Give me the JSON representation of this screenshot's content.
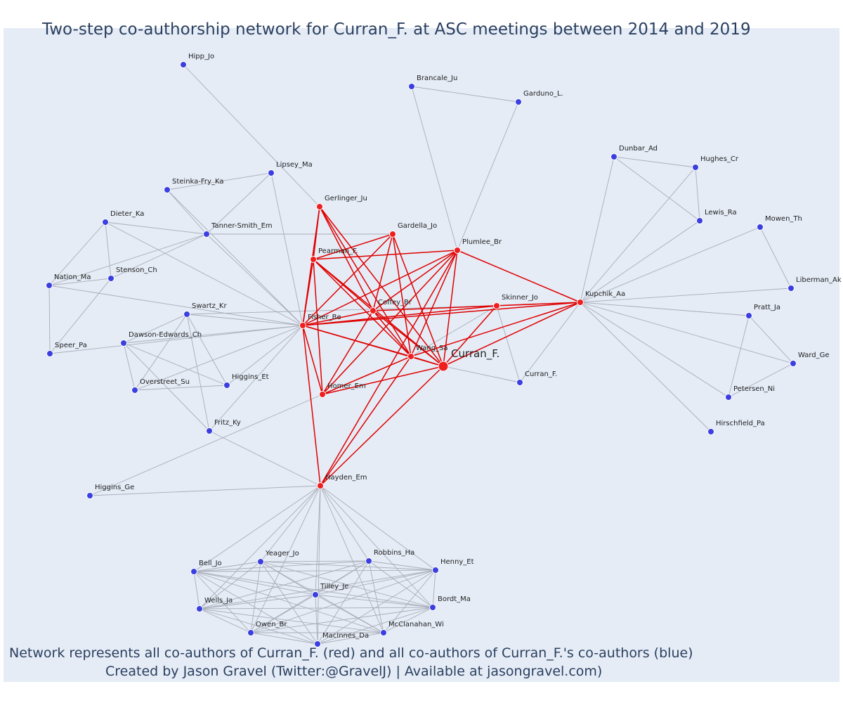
{
  "title": "Two-step co-authorship network for Curran_F. at ASC meetings between 2014 and 2019",
  "captions": {
    "line1": "Network represents all co-authors of Curran_F. (red) and all co-authors of Curran_F.'s co-authors (blue)",
    "line2": "Created by Jason Gravel (Twitter:@GravelJ) | Available at jasongravel.com)"
  },
  "colors": {
    "background": "#e5ecf6",
    "red_node": "#ef1f1f",
    "blue_node": "#3b3fe0",
    "red_edge": "#e00000",
    "gray_edge": "#a9adb8",
    "text": "#2a3f5f"
  },
  "nodes": [
    {
      "id": "Curran_F.",
      "label": "Curran_F.",
      "group": "focal"
    },
    {
      "id": "Wang_Sa",
      "label": "Wang_Sa",
      "group": "red"
    },
    {
      "id": "Fisher_Be",
      "label": "Fisher_Be",
      "group": "red"
    },
    {
      "id": "Coffey_Br",
      "label": "Coffey_Br",
      "group": "red"
    },
    {
      "id": "Gerlinger_Ju",
      "label": "Gerlinger_Ju",
      "group": "red"
    },
    {
      "id": "Gardella_Jo",
      "label": "Gardella_Jo",
      "group": "red"
    },
    {
      "id": "Pearman_F.",
      "label": "Pearman_F.",
      "group": "red"
    },
    {
      "id": "Plumlee_Br",
      "label": "Plumlee_Br",
      "group": "red"
    },
    {
      "id": "Skinner_Jo",
      "label": "Skinner_Jo",
      "group": "red"
    },
    {
      "id": "Kupchik_Aa",
      "label": "Kupchik_Aa",
      "group": "red"
    },
    {
      "id": "Homer_Em",
      "label": "Homer_Em",
      "group": "red"
    },
    {
      "id": "Hayden_Em",
      "label": "Hayden_Em",
      "group": "red"
    },
    {
      "id": "Hipp_Jo",
      "label": "Hipp_Jo",
      "group": "blue"
    },
    {
      "id": "Lipsey_Ma",
      "label": "Lipsey_Ma",
      "group": "blue"
    },
    {
      "id": "Steinka-Fry_Ka",
      "label": "Steinka-Fry_Ka",
      "group": "blue"
    },
    {
      "id": "Tanner-Smith_Em",
      "label": "Tanner-Smith_Em",
      "group": "blue"
    },
    {
      "id": "Dieter_Ka",
      "label": "Dieter_Ka",
      "group": "blue"
    },
    {
      "id": "Stenson_Ch",
      "label": "Stenson_Ch",
      "group": "blue"
    },
    {
      "id": "Nation_Ma",
      "label": "Nation_Ma",
      "group": "blue"
    },
    {
      "id": "Speer_Pa",
      "label": "Speer_Pa",
      "group": "blue"
    },
    {
      "id": "Swartz_Kr",
      "label": "Swartz_Kr",
      "group": "blue"
    },
    {
      "id": "Dawson-Edwards_Ch",
      "label": "Dawson-Edwards_Ch",
      "group": "blue"
    },
    {
      "id": "Overstreet_Su",
      "label": "Overstreet_Su",
      "group": "blue"
    },
    {
      "id": "Higgins_Et",
      "label": "Higgins_Et",
      "group": "blue"
    },
    {
      "id": "Fritz_Ky",
      "label": "Fritz_Ky",
      "group": "blue"
    },
    {
      "id": "Higgins_Ge",
      "label": "Higgins_Ge",
      "group": "blue"
    },
    {
      "id": "Brancale_Ju",
      "label": "Brancale_Ju",
      "group": "blue"
    },
    {
      "id": "Garduno_L.",
      "label": "Garduno_L.",
      "group": "blue"
    },
    {
      "id": "Dunbar_Ad",
      "label": "Dunbar_Ad",
      "group": "blue"
    },
    {
      "id": "Hughes_Cr",
      "label": "Hughes_Cr",
      "group": "blue"
    },
    {
      "id": "Lewis_Ra",
      "label": "Lewis_Ra",
      "group": "blue"
    },
    {
      "id": "Mowen_Th",
      "label": "Mowen_Th",
      "group": "blue"
    },
    {
      "id": "Liberman_Ak",
      "label": "Liberman_Ak",
      "group": "blue"
    },
    {
      "id": "Pratt_Ja",
      "label": "Pratt_Ja",
      "group": "blue"
    },
    {
      "id": "Ward_Ge",
      "label": "Ward_Ge",
      "group": "blue"
    },
    {
      "id": "Petersen_Ni",
      "label": "Petersen_Ni",
      "group": "blue"
    },
    {
      "id": "Hirschfield_Pa",
      "label": "Hirschfield_Pa",
      "group": "blue"
    },
    {
      "id": "Curran_F.2",
      "label": "Curran_F.",
      "group": "blue"
    },
    {
      "id": "Bell_Jo",
      "label": "Bell_Jo",
      "group": "blue"
    },
    {
      "id": "Yeager_Jo",
      "label": "Yeager_Jo",
      "group": "blue"
    },
    {
      "id": "Robbins_Ha",
      "label": "Robbins_Ha",
      "group": "blue"
    },
    {
      "id": "Henny_Et",
      "label": "Henny_Et",
      "group": "blue"
    },
    {
      "id": "Tilley_Je",
      "label": "Tilley_Je",
      "group": "blue"
    },
    {
      "id": "Wells_Ja",
      "label": "Wells_Ja",
      "group": "blue"
    },
    {
      "id": "Bordt_Ma",
      "label": "Bordt_Ma",
      "group": "blue"
    },
    {
      "id": "Owen_Br",
      "label": "Owen_Br",
      "group": "blue"
    },
    {
      "id": "McClanahan_Wi",
      "label": "McClanahan_Wi",
      "group": "blue"
    },
    {
      "id": "MacInnes_Da",
      "label": "MacInnes_Da",
      "group": "blue"
    }
  ],
  "red_edges": [
    [
      "Curran_F.",
      "Wang_Sa"
    ],
    [
      "Curran_F.",
      "Fisher_Be"
    ],
    [
      "Curran_F.",
      "Coffey_Br"
    ],
    [
      "Curran_F.",
      "Gerlinger_Ju"
    ],
    [
      "Curran_F.",
      "Gardella_Jo"
    ],
    [
      "Curran_F.",
      "Pearman_F."
    ],
    [
      "Curran_F.",
      "Plumlee_Br"
    ],
    [
      "Curran_F.",
      "Skinner_Jo"
    ],
    [
      "Curran_F.",
      "Kupchik_Aa"
    ],
    [
      "Curran_F.",
      "Homer_Em"
    ],
    [
      "Curran_F.",
      "Hayden_Em"
    ],
    [
      "Wang_Sa",
      "Fisher_Be"
    ],
    [
      "Wang_Sa",
      "Coffey_Br"
    ],
    [
      "Wang_Sa",
      "Gerlinger_Ju"
    ],
    [
      "Wang_Sa",
      "Gardella_Jo"
    ],
    [
      "Wang_Sa",
      "Pearman_F."
    ],
    [
      "Wang_Sa",
      "Plumlee_Br"
    ],
    [
      "Wang_Sa",
      "Kupchik_Aa"
    ],
    [
      "Wang_Sa",
      "Homer_Em"
    ],
    [
      "Wang_Sa",
      "Hayden_Em"
    ],
    [
      "Fisher_Be",
      "Gerlinger_Ju"
    ],
    [
      "Fisher_Be",
      "Gardella_Jo"
    ],
    [
      "Fisher_Be",
      "Pearman_F."
    ],
    [
      "Fisher_Be",
      "Plumlee_Br"
    ],
    [
      "Fisher_Be",
      "Skinner_Jo"
    ],
    [
      "Fisher_Be",
      "Kupchik_Aa"
    ],
    [
      "Fisher_Be",
      "Homer_Em"
    ],
    [
      "Fisher_Be",
      "Hayden_Em"
    ],
    [
      "Fisher_Be",
      "Coffey_Br"
    ],
    [
      "Coffey_Br",
      "Gerlinger_Ju"
    ],
    [
      "Coffey_Br",
      "Pearman_F."
    ],
    [
      "Coffey_Br",
      "Plumlee_Br"
    ],
    [
      "Coffey_Br",
      "Kupchik_Aa"
    ],
    [
      "Coffey_Br",
      "Homer_Em"
    ],
    [
      "Coffey_Br",
      "Gardella_Jo"
    ],
    [
      "Pearman_F.",
      "Gardella_Jo"
    ],
    [
      "Pearman_F.",
      "Gerlinger_Ju"
    ],
    [
      "Pearman_F.",
      "Plumlee_Br"
    ],
    [
      "Pearman_F.",
      "Homer_Em"
    ],
    [
      "Plumlee_Br",
      "Homer_Em"
    ],
    [
      "Plumlee_Br",
      "Kupchik_Aa"
    ],
    [
      "Plumlee_Br",
      "Hayden_Em"
    ]
  ],
  "gray_edges": [
    [
      "Hipp_Jo",
      "Gerlinger_Ju"
    ],
    [
      "Lipsey_Ma",
      "Steinka-Fry_Ka"
    ],
    [
      "Lipsey_Ma",
      "Tanner-Smith_Em"
    ],
    [
      "Lipsey_Ma",
      "Fisher_Be"
    ],
    [
      "Steinka-Fry_Ka",
      "Tanner-Smith_Em"
    ],
    [
      "Steinka-Fry_Ka",
      "Fisher_Be"
    ],
    [
      "Tanner-Smith_Em",
      "Fisher_Be"
    ],
    [
      "Tanner-Smith_Em",
      "Gardella_Jo"
    ],
    [
      "Tanner-Smith_Em",
      "Nation_Ma"
    ],
    [
      "Tanner-Smith_Em",
      "Stenson_Ch"
    ],
    [
      "Dieter_Ka",
      "Tanner-Smith_Em"
    ],
    [
      "Dieter_Ka",
      "Stenson_Ch"
    ],
    [
      "Dieter_Ka",
      "Nation_Ma"
    ],
    [
      "Dieter_Ka",
      "Fisher_Be"
    ],
    [
      "Stenson_Ch",
      "Nation_Ma"
    ],
    [
      "Stenson_Ch",
      "Speer_Pa"
    ],
    [
      "Nation_Ma",
      "Speer_Pa"
    ],
    [
      "Nation_Ma",
      "Fisher_Be"
    ],
    [
      "Speer_Pa",
      "Fisher_Be"
    ],
    [
      "Swartz_Kr",
      "Fisher_Be"
    ],
    [
      "Swartz_Kr",
      "Dawson-Edwards_Ch"
    ],
    [
      "Swartz_Kr",
      "Overstreet_Su"
    ],
    [
      "Swartz_Kr",
      "Higgins_Et"
    ],
    [
      "Swartz_Kr",
      "Fritz_Ky"
    ],
    [
      "Swartz_Kr",
      "Skinner_Jo"
    ],
    [
      "Dawson-Edwards_Ch",
      "Fisher_Be"
    ],
    [
      "Dawson-Edwards_Ch",
      "Overstreet_Su"
    ],
    [
      "Dawson-Edwards_Ch",
      "Higgins_Et"
    ],
    [
      "Dawson-Edwards_Ch",
      "Fritz_Ky"
    ],
    [
      "Overstreet_Su",
      "Fisher_Be"
    ],
    [
      "Overstreet_Su",
      "Higgins_Et"
    ],
    [
      "Higgins_Et",
      "Fisher_Be"
    ],
    [
      "Fritz_Ky",
      "Fisher_Be"
    ],
    [
      "Fritz_Ky",
      "Hayden_Em"
    ],
    [
      "Higgins_Ge",
      "Hayden_Em"
    ],
    [
      "Higgins_Ge",
      "Homer_Em"
    ],
    [
      "Brancale_Ju",
      "Garduno_L."
    ],
    [
      "Brancale_Ju",
      "Plumlee_Br"
    ],
    [
      "Garduno_L.",
      "Plumlee_Br"
    ],
    [
      "Dunbar_Ad",
      "Hughes_Cr"
    ],
    [
      "Dunbar_Ad",
      "Lewis_Ra"
    ],
    [
      "Dunbar_Ad",
      "Kupchik_Aa"
    ],
    [
      "Hughes_Cr",
      "Lewis_Ra"
    ],
    [
      "Hughes_Cr",
      "Kupchik_Aa"
    ],
    [
      "Lewis_Ra",
      "Kupchik_Aa"
    ],
    [
      "Mowen_Th",
      "Liberman_Ak"
    ],
    [
      "Mowen_Th",
      "Kupchik_Aa"
    ],
    [
      "Liberman_Ak",
      "Kupchik_Aa"
    ],
    [
      "Pratt_Ja",
      "Kupchik_Aa"
    ],
    [
      "Pratt_Ja",
      "Ward_Ge"
    ],
    [
      "Pratt_Ja",
      "Petersen_Ni"
    ],
    [
      "Ward_Ge",
      "Kupchik_Aa"
    ],
    [
      "Ward_Ge",
      "Petersen_Ni"
    ],
    [
      "Petersen_Ni",
      "Kupchik_Aa"
    ],
    [
      "Hirschfield_Pa",
      "Kupchik_Aa"
    ],
    [
      "Curran_F.2",
      "Skinner_Jo"
    ],
    [
      "Curran_F.2",
      "Kupchik_Aa"
    ],
    [
      "Curran_F.2",
      "Curran_F."
    ],
    [
      "Skinner_Jo",
      "Wang_Sa"
    ],
    [
      "Hayden_Em",
      "Bell_Jo"
    ],
    [
      "Hayden_Em",
      "Yeager_Jo"
    ],
    [
      "Hayden_Em",
      "Robbins_Ha"
    ],
    [
      "Hayden_Em",
      "Henny_Et"
    ],
    [
      "Hayden_Em",
      "Tilley_Je"
    ],
    [
      "Hayden_Em",
      "Wells_Ja"
    ],
    [
      "Hayden_Em",
      "Bordt_Ma"
    ],
    [
      "Hayden_Em",
      "Owen_Br"
    ],
    [
      "Hayden_Em",
      "McClanahan_Wi"
    ],
    [
      "Hayden_Em",
      "MacInnes_Da"
    ],
    [
      "Bell_Jo",
      "Yeager_Jo"
    ],
    [
      "Bell_Jo",
      "Robbins_Ha"
    ],
    [
      "Bell_Jo",
      "Henny_Et"
    ],
    [
      "Bell_Jo",
      "Tilley_Je"
    ],
    [
      "Bell_Jo",
      "Wells_Ja"
    ],
    [
      "Bell_Jo",
      "Bordt_Ma"
    ],
    [
      "Bell_Jo",
      "Owen_Br"
    ],
    [
      "Bell_Jo",
      "McClanahan_Wi"
    ],
    [
      "Bell_Jo",
      "MacInnes_Da"
    ],
    [
      "Yeager_Jo",
      "Robbins_Ha"
    ],
    [
      "Yeager_Jo",
      "Henny_Et"
    ],
    [
      "Yeager_Jo",
      "Tilley_Je"
    ],
    [
      "Yeager_Jo",
      "Wells_Ja"
    ],
    [
      "Yeager_Jo",
      "Bordt_Ma"
    ],
    [
      "Yeager_Jo",
      "Owen_Br"
    ],
    [
      "Yeager_Jo",
      "McClanahan_Wi"
    ],
    [
      "Yeager_Jo",
      "MacInnes_Da"
    ],
    [
      "Robbins_Ha",
      "Henny_Et"
    ],
    [
      "Robbins_Ha",
      "Tilley_Je"
    ],
    [
      "Robbins_Ha",
      "Wells_Ja"
    ],
    [
      "Robbins_Ha",
      "Bordt_Ma"
    ],
    [
      "Robbins_Ha",
      "Owen_Br"
    ],
    [
      "Robbins_Ha",
      "McClanahan_Wi"
    ],
    [
      "Robbins_Ha",
      "MacInnes_Da"
    ],
    [
      "Henny_Et",
      "Tilley_Je"
    ],
    [
      "Henny_Et",
      "Wells_Ja"
    ],
    [
      "Henny_Et",
      "Bordt_Ma"
    ],
    [
      "Henny_Et",
      "Owen_Br"
    ],
    [
      "Henny_Et",
      "McClanahan_Wi"
    ],
    [
      "Henny_Et",
      "MacInnes_Da"
    ],
    [
      "Tilley_Je",
      "Wells_Ja"
    ],
    [
      "Tilley_Je",
      "Bordt_Ma"
    ],
    [
      "Tilley_Je",
      "Owen_Br"
    ],
    [
      "Tilley_Je",
      "McClanahan_Wi"
    ],
    [
      "Tilley_Je",
      "MacInnes_Da"
    ],
    [
      "Wells_Ja",
      "Bordt_Ma"
    ],
    [
      "Wells_Ja",
      "Owen_Br"
    ],
    [
      "Wells_Ja",
      "McClanahan_Wi"
    ],
    [
      "Wells_Ja",
      "MacInnes_Da"
    ],
    [
      "Bordt_Ma",
      "Owen_Br"
    ],
    [
      "Bordt_Ma",
      "McClanahan_Wi"
    ],
    [
      "Bordt_Ma",
      "MacInnes_Da"
    ],
    [
      "Owen_Br",
      "McClanahan_Wi"
    ],
    [
      "Owen_Br",
      "MacInnes_Da"
    ],
    [
      "McClanahan_Wi",
      "MacInnes_Da"
    ]
  ]
}
